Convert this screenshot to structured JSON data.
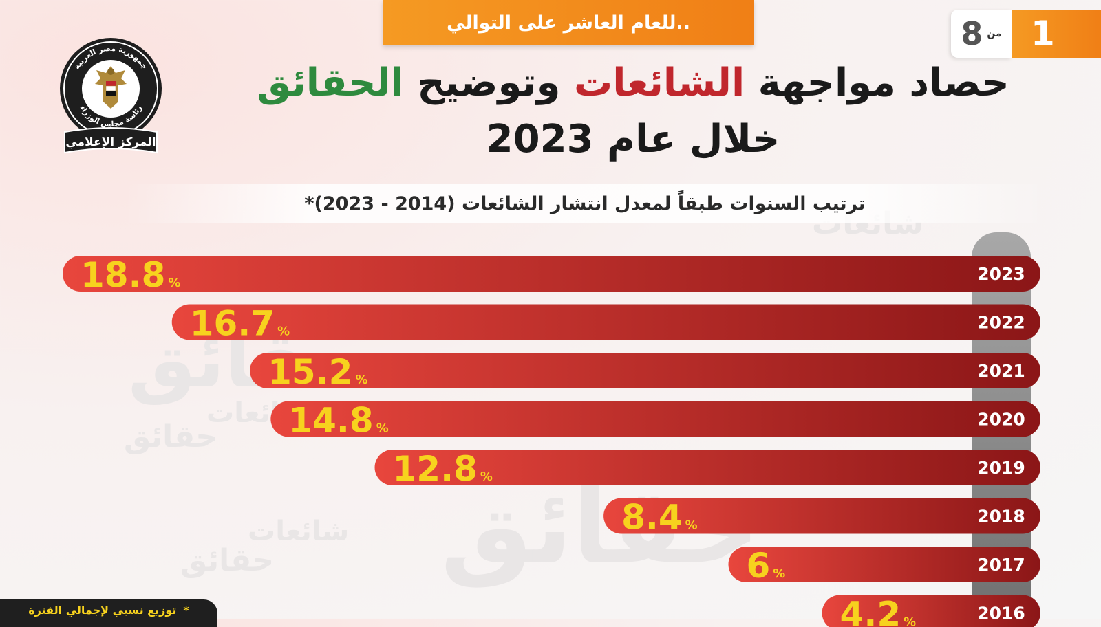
{
  "top_banner": {
    "text": "للعام العاشر على التوالي.."
  },
  "page_counter": {
    "current": "1",
    "of_label": "من",
    "total": "8"
  },
  "logo": {
    "arc_text_top": "جمهورية مصر العربية",
    "arc_text_bottom": "رئاسة مجلس الوزراء",
    "band_text": "المركز الإعلامي"
  },
  "title": {
    "part1": "حصاد مواجهة ",
    "part2_red": "الشائعات",
    "part3": " وتوضيح ",
    "part4_green": "الحقائق",
    "line2": "خلال عام 2023"
  },
  "subtitle": "ترتيب السنوات طبقاً لمعدل انتشار الشائعات (2014 - 2023)*",
  "footnote": {
    "star": "*",
    "text": "توزيع نسبي لإجمالي الفترة"
  },
  "watermark_words": [
    "شائعات",
    "حقائق"
  ],
  "colors": {
    "bar_light": "#e8463d",
    "bar_dark": "#8b1617",
    "value_label": "#f7d21e",
    "title_red": "#c0272d",
    "title_green": "#2e8a3e",
    "banner_orange": "#f28a1c"
  },
  "chart_data": {
    "type": "bar",
    "orientation": "horizontal",
    "categories": [
      "2023",
      "2022",
      "2021",
      "2020",
      "2019",
      "2018",
      "2017",
      "2016"
    ],
    "values": [
      18.8,
      16.7,
      15.2,
      14.8,
      12.8,
      8.4,
      6,
      4.2
    ],
    "value_labels": [
      "18.8",
      "16.7",
      "15.2",
      "14.8",
      "12.8",
      "8.4",
      "6",
      "4.2"
    ],
    "unit": "%",
    "xlim": [
      0,
      20
    ]
  }
}
